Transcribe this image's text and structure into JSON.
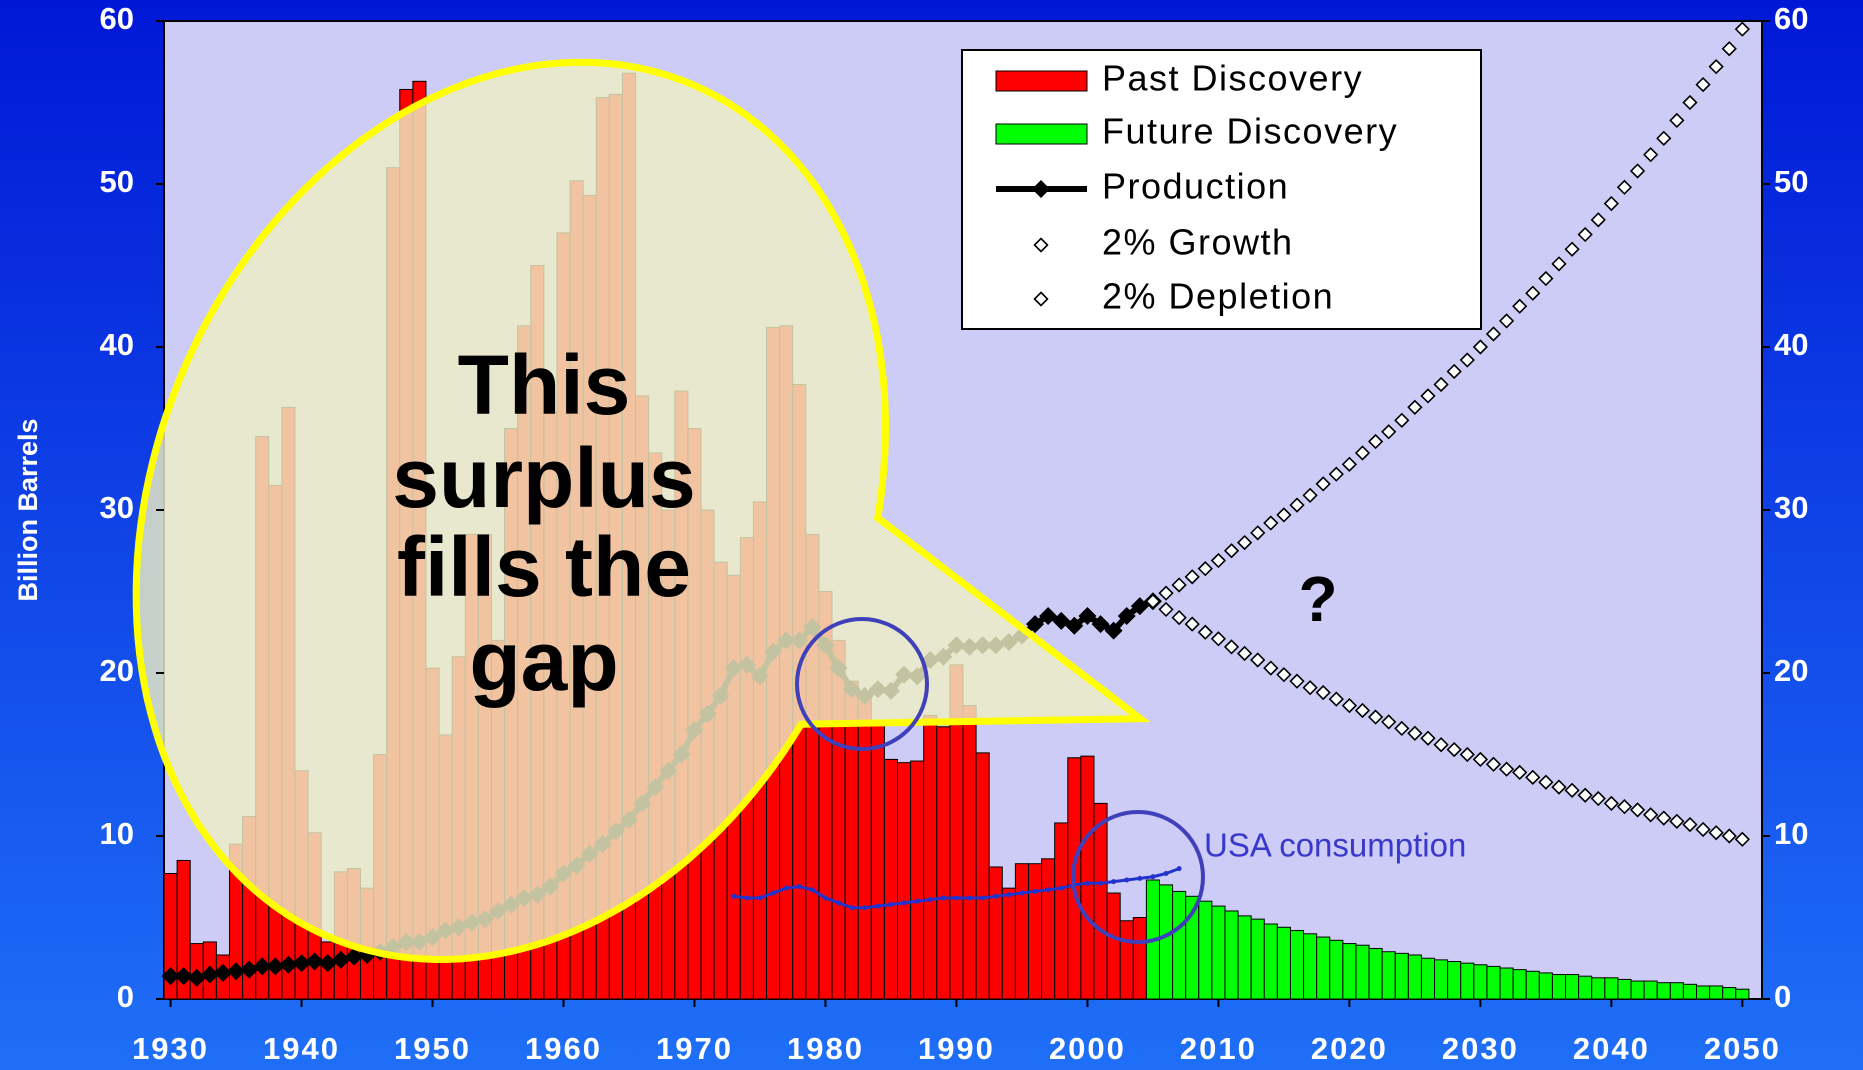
{
  "chart_data": {
    "type": "bar",
    "y_label": "Billion Barrels",
    "xlim": [
      1929.5,
      2051.5
    ],
    "xticks": [
      1930,
      1940,
      1950,
      1960,
      1970,
      1980,
      1990,
      2000,
      2010,
      2020,
      2030,
      2040,
      2050
    ],
    "ylim": [
      0,
      60
    ],
    "yticks": [
      0,
      10,
      20,
      30,
      40,
      50,
      60
    ],
    "y2lim": [
      0,
      60
    ],
    "y2ticks": [
      0,
      10,
      20,
      30,
      40,
      50,
      60
    ],
    "grid": false,
    "legend": "top-right",
    "annotations": {
      "bubble": [
        "This",
        "surplus",
        "fills the",
        "gap"
      ],
      "question": "?"
    },
    "series": [
      {
        "name": "Past Discovery",
        "type": "bar",
        "color": "#ff0000",
        "x": [
          1930,
          1931,
          1932,
          1933,
          1934,
          1935,
          1936,
          1937,
          1938,
          1939,
          1940,
          1941,
          1942,
          1943,
          1944,
          1945,
          1946,
          1947,
          1948,
          1949,
          1950,
          1951,
          1952,
          1953,
          1954,
          1955,
          1956,
          1957,
          1958,
          1959,
          1960,
          1961,
          1962,
          1963,
          1964,
          1965,
          1966,
          1967,
          1968,
          1969,
          1970,
          1971,
          1972,
          1973,
          1974,
          1975,
          1976,
          1977,
          1978,
          1979,
          1980,
          1981,
          1982,
          1983,
          1984,
          1985,
          1986,
          1987,
          1988,
          1989,
          1990,
          1991,
          1992,
          1993,
          1994,
          1995,
          1996,
          1997,
          1998,
          1999,
          2000,
          2001,
          2002,
          2003,
          2004
        ],
        "values": [
          7.7,
          8.5,
          3.4,
          3.5,
          2.7,
          9.5,
          11.2,
          34.5,
          31.5,
          36.3,
          14,
          10.2,
          3.5,
          7.8,
          8.0,
          6.8,
          15,
          51,
          55.8,
          56.3,
          20.3,
          16.2,
          21,
          28.5,
          28.5,
          22,
          35,
          41.3,
          45,
          36,
          47,
          50.2,
          49.3,
          55.3,
          55.5,
          56.8,
          37,
          33.5,
          30,
          37.3,
          35,
          30,
          26.8,
          26,
          28.3,
          30.5,
          41.2,
          41.3,
          37.7,
          28.5,
          25,
          22,
          19.5,
          18.5,
          16.8,
          14.7,
          14.5,
          14.6,
          17.4,
          16.7,
          20.5,
          18,
          15.1,
          8.1,
          6.8,
          8.3,
          8.3,
          8.6,
          10.8,
          14.8,
          14.9,
          12,
          6.5,
          4.8,
          5.0
        ]
      },
      {
        "name": "Future Discovery",
        "type": "bar",
        "color": "#00ff00",
        "x": [
          2005,
          2006,
          2007,
          2008,
          2009,
          2010,
          2011,
          2012,
          2013,
          2014,
          2015,
          2016,
          2017,
          2018,
          2019,
          2020,
          2021,
          2022,
          2023,
          2024,
          2025,
          2026,
          2027,
          2028,
          2029,
          2030,
          2031,
          2032,
          2033,
          2034,
          2035,
          2036,
          2037,
          2038,
          2039,
          2040,
          2041,
          2042,
          2043,
          2044,
          2045,
          2046,
          2047,
          2048,
          2049,
          2050
        ],
        "values": [
          7.3,
          7.0,
          6.6,
          6.3,
          6.0,
          5.7,
          5.4,
          5.1,
          4.9,
          4.6,
          4.4,
          4.2,
          4.0,
          3.8,
          3.6,
          3.4,
          3.3,
          3.1,
          2.9,
          2.8,
          2.7,
          2.5,
          2.4,
          2.3,
          2.2,
          2.1,
          2.0,
          1.9,
          1.8,
          1.7,
          1.6,
          1.5,
          1.5,
          1.4,
          1.3,
          1.3,
          1.2,
          1.1,
          1.1,
          1.0,
          1.0,
          0.9,
          0.8,
          0.8,
          0.7,
          0.6
        ]
      },
      {
        "name": "Production",
        "type": "line",
        "color": "#000000",
        "marker": "filled-diamond",
        "x": [
          1930,
          1931,
          1932,
          1933,
          1934,
          1935,
          1936,
          1937,
          1938,
          1939,
          1940,
          1941,
          1942,
          1943,
          1944,
          1945,
          1946,
          1947,
          1948,
          1949,
          1950,
          1951,
          1952,
          1953,
          1954,
          1955,
          1956,
          1957,
          1958,
          1959,
          1960,
          1961,
          1962,
          1963,
          1964,
          1965,
          1966,
          1967,
          1968,
          1969,
          1970,
          1971,
          1972,
          1973,
          1974,
          1975,
          1976,
          1977,
          1978,
          1979,
          1980,
          1981,
          1982,
          1983,
          1984,
          1985,
          1986,
          1987,
          1988,
          1989,
          1990,
          1991,
          1992,
          1993,
          1994,
          1995,
          1996,
          1997,
          1998,
          1999,
          2000,
          2001,
          2002,
          2003,
          2004,
          2005
        ],
        "values": [
          1.4,
          1.4,
          1.3,
          1.5,
          1.6,
          1.7,
          1.8,
          2.0,
          2.0,
          2.1,
          2.2,
          2.3,
          2.2,
          2.4,
          2.6,
          2.7,
          2.9,
          3.2,
          3.5,
          3.5,
          3.8,
          4.2,
          4.4,
          4.7,
          4.9,
          5.4,
          5.8,
          6.2,
          6.4,
          6.9,
          7.7,
          8.2,
          8.9,
          9.5,
          10.3,
          11.0,
          12.0,
          13.0,
          14.0,
          15.0,
          16.5,
          17.5,
          18.6,
          20.3,
          20.5,
          19.8,
          21.3,
          22.0,
          22.0,
          22.8,
          21.7,
          20.3,
          19.0,
          18.6,
          19.0,
          18.9,
          19.9,
          19.8,
          20.8,
          21.0,
          21.7,
          21.6,
          21.7,
          21.7,
          21.9,
          22.3,
          23.0,
          23.5,
          23.2,
          22.9,
          23.5,
          23.0,
          22.6,
          23.5,
          24.1,
          24.4
        ]
      },
      {
        "name": "2% Growth",
        "type": "scatter",
        "color": "#000000",
        "marker": "open-diamond",
        "x": [
          2005,
          2006,
          2007,
          2008,
          2009,
          2010,
          2011,
          2012,
          2013,
          2014,
          2015,
          2016,
          2017,
          2018,
          2019,
          2020,
          2021,
          2022,
          2023,
          2024,
          2025,
          2026,
          2027,
          2028,
          2029,
          2030,
          2031,
          2032,
          2033,
          2034,
          2035,
          2036,
          2037,
          2038,
          2039,
          2040,
          2041,
          2042,
          2043,
          2044,
          2045,
          2046,
          2047,
          2048,
          2049,
          2050
        ],
        "values": [
          24.4,
          24.9,
          25.4,
          25.9,
          26.4,
          26.9,
          27.5,
          28.0,
          28.6,
          29.2,
          29.7,
          30.3,
          30.9,
          31.6,
          32.2,
          32.8,
          33.5,
          34.2,
          34.8,
          35.5,
          36.3,
          37.0,
          37.7,
          38.5,
          39.2,
          40.0,
          40.8,
          41.6,
          42.5,
          43.3,
          44.2,
          45.1,
          46.0,
          46.9,
          47.8,
          48.8,
          49.8,
          50.8,
          51.8,
          52.8,
          53.9,
          55.0,
          56.1,
          57.2,
          58.3,
          59.5
        ]
      },
      {
        "name": "2% Depletion",
        "type": "scatter",
        "color": "#000000",
        "marker": "open-diamond",
        "x": [
          2005,
          2006,
          2007,
          2008,
          2009,
          2010,
          2011,
          2012,
          2013,
          2014,
          2015,
          2016,
          2017,
          2018,
          2019,
          2020,
          2021,
          2022,
          2023,
          2024,
          2025,
          2026,
          2027,
          2028,
          2029,
          2030,
          2031,
          2032,
          2033,
          2034,
          2035,
          2036,
          2037,
          2038,
          2039,
          2040,
          2041,
          2042,
          2043,
          2044,
          2045,
          2046,
          2047,
          2048,
          2049,
          2050
        ],
        "values": [
          24.4,
          23.9,
          23.4,
          23.0,
          22.5,
          22.1,
          21.6,
          21.2,
          20.8,
          20.3,
          19.9,
          19.5,
          19.1,
          18.8,
          18.4,
          18.0,
          17.7,
          17.3,
          17.0,
          16.6,
          16.3,
          16.0,
          15.6,
          15.3,
          15.0,
          14.7,
          14.4,
          14.1,
          13.9,
          13.6,
          13.3,
          13.0,
          12.8,
          12.5,
          12.3,
          12.0,
          11.8,
          11.6,
          11.3,
          11.1,
          10.9,
          10.7,
          10.4,
          10.2,
          10.0,
          9.8
        ]
      },
      {
        "name": "USA  consumption",
        "type": "line",
        "color": "#2233cc",
        "marker": "dot",
        "in_legend": false,
        "x": [
          1973,
          1974,
          1975,
          1976,
          1977,
          1978,
          1979,
          1980,
          1981,
          1982,
          1983,
          1984,
          1985,
          1986,
          1987,
          1988,
          1989,
          1990,
          1991,
          1992,
          1993,
          1994,
          1995,
          1996,
          1997,
          1998,
          1999,
          2000,
          2001,
          2002,
          2003,
          2004,
          2005,
          2006,
          2007
        ],
        "values": [
          6.3,
          6.2,
          6.2,
          6.5,
          6.8,
          6.9,
          6.7,
          6.2,
          5.9,
          5.6,
          5.6,
          5.7,
          5.8,
          5.9,
          6.0,
          6.1,
          6.2,
          6.2,
          6.2,
          6.2,
          6.3,
          6.4,
          6.5,
          6.6,
          6.7,
          6.8,
          7.0,
          7.1,
          7.1,
          7.2,
          7.3,
          7.4,
          7.5,
          7.7,
          8.0
        ]
      }
    ]
  }
}
